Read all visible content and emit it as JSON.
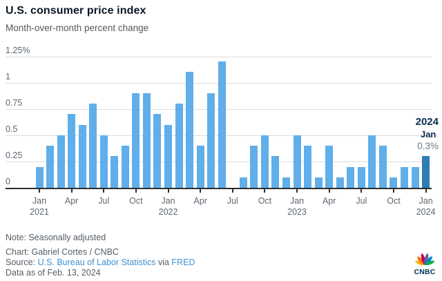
{
  "header": {
    "title": "U.S. consumer price index",
    "subtitle": "Month-over-month percent change"
  },
  "chart_data": {
    "type": "bar",
    "title": "U.S. consumer price index",
    "subtitle": "Month-over-month percent change",
    "unit": "percent change, month over month",
    "ylim": [
      0,
      1.25
    ],
    "grid": true,
    "legend": "none",
    "yticks": [
      {
        "value": 1.25,
        "label": "1.25%"
      },
      {
        "value": 1.0,
        "label": "1"
      },
      {
        "value": 0.75,
        "label": "0.75"
      },
      {
        "value": 0.5,
        "label": "0.5"
      },
      {
        "value": 0.25,
        "label": "0.25"
      },
      {
        "value": 0,
        "label": "0"
      }
    ],
    "x": [
      "Jan 2021",
      "Feb 2021",
      "Mar 2021",
      "Apr 2021",
      "May 2021",
      "Jun 2021",
      "Jul 2021",
      "Aug 2021",
      "Sep 2021",
      "Oct 2021",
      "Nov 2021",
      "Dec 2021",
      "Jan 2022",
      "Feb 2022",
      "Mar 2022",
      "Apr 2022",
      "May 2022",
      "Jun 2022",
      "Jul 2022",
      "Aug 2022",
      "Sep 2022",
      "Oct 2022",
      "Nov 2022",
      "Dec 2022",
      "Jan 2023",
      "Feb 2023",
      "Mar 2023",
      "Apr 2023",
      "May 2023",
      "Jun 2023",
      "Jul 2023",
      "Aug 2023",
      "Sep 2023",
      "Oct 2023",
      "Nov 2023",
      "Dec 2023",
      "Jan 2024"
    ],
    "values": [
      0.2,
      0.4,
      0.5,
      0.7,
      0.6,
      0.8,
      0.5,
      0.3,
      0.4,
      0.9,
      0.9,
      0.7,
      0.6,
      0.8,
      1.1,
      0.4,
      0.9,
      1.2,
      0.0,
      0.1,
      0.4,
      0.5,
      0.3,
      0.1,
      0.5,
      0.4,
      0.1,
      0.4,
      0.1,
      0.2,
      0.2,
      0.5,
      0.4,
      0.1,
      0.2,
      0.2,
      0.3
    ],
    "xticks": [
      {
        "index": 0,
        "label": "Jan",
        "year": "2021"
      },
      {
        "index": 3,
        "label": "Apr"
      },
      {
        "index": 6,
        "label": "Jul"
      },
      {
        "index": 9,
        "label": "Oct"
      },
      {
        "index": 12,
        "label": "Jan",
        "year": "2022"
      },
      {
        "index": 15,
        "label": "Apr"
      },
      {
        "index": 18,
        "label": "Jul"
      },
      {
        "index": 21,
        "label": "Oct"
      },
      {
        "index": 24,
        "label": "Jan",
        "year": "2023"
      },
      {
        "index": 27,
        "label": "Apr"
      },
      {
        "index": 30,
        "label": "Jul"
      },
      {
        "index": 33,
        "label": "Oct"
      },
      {
        "index": 36,
        "label": "Jan",
        "year": "2024"
      }
    ],
    "bar_color": "#60aeea",
    "highlight_color": "#2d7cb4",
    "highlight_index": 36,
    "annotation": {
      "year": "2024",
      "month": "Jan",
      "dot": ".",
      "value": "0.3%"
    }
  },
  "footer": {
    "note": "Note: Seasonally adjusted",
    "credit": "Chart: Gabriel Cortes / CNBC",
    "source_prefix": "Source: ",
    "source_link_bls": "U.S. Bureau of Labor Statistics",
    "source_mid": " via ",
    "source_link_fred": "FRED",
    "asof": "Data as of Feb. 13, 2024",
    "link_color": "#3e92d4"
  },
  "logo": {
    "wordmark": "CNBC",
    "wordmark_color": "#00335e",
    "feather_colors": [
      "#FCB711",
      "#F37021",
      "#CC004C",
      "#6460AA",
      "#0089D0",
      "#0DB14B"
    ]
  }
}
